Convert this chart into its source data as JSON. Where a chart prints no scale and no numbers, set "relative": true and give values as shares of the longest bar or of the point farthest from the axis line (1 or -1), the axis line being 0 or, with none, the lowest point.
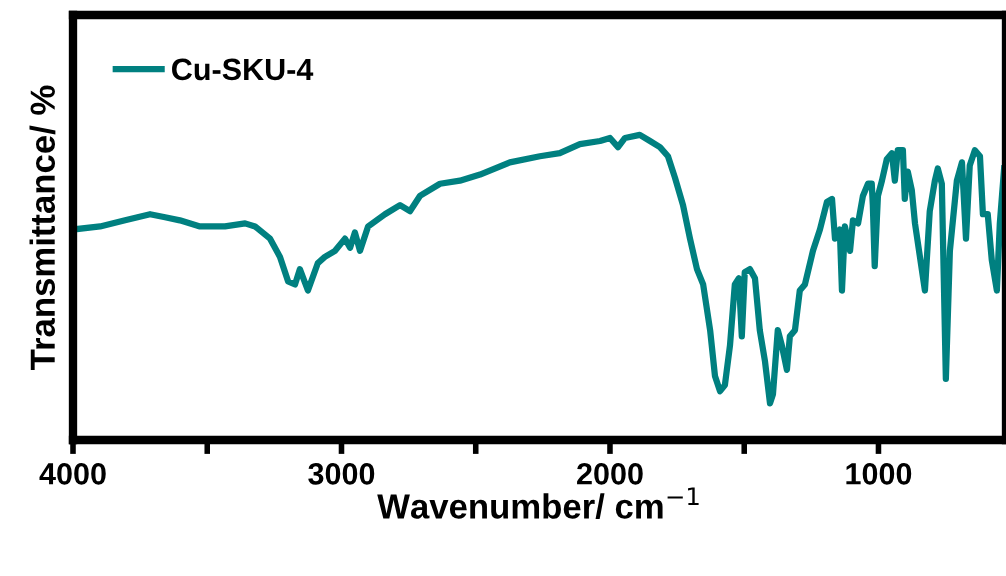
{
  "chart_data": {
    "type": "line",
    "relative": true,
    "xlabel": "Wavenumber/ cm$^{−1}$",
    "ylabel": "Transmittance/ %",
    "xlim": [
      4000,
      525
    ],
    "xticks": [
      4000,
      {
        "value": 3500,
        "label": null
      },
      3000,
      {
        "value": 2500,
        "label": null
      },
      2000,
      {
        "value": 1500,
        "label": null
      },
      1000
    ],
    "tick_labels": "x",
    "grid": false,
    "legend": "top left",
    "marker": "none",
    "line_style": "solid",
    "x": [
      4000,
      3899,
      3806,
      3713,
      3657,
      3602,
      3527,
      3434,
      3359,
      3322,
      3266,
      3229,
      3199,
      3173,
      3155,
      3125,
      3088,
      3062,
      3024,
      2987,
      2968,
      2950,
      2931,
      2901,
      2838,
      2782,
      2745,
      2708,
      2633,
      2559,
      2484,
      2373,
      2261,
      2187,
      2112,
      2037,
      2000,
      1970,
      1944,
      1889,
      1851,
      1814,
      1784,
      1758,
      1728,
      1702,
      1676,
      1653,
      1627,
      1609,
      1590,
      1572,
      1553,
      1535,
      1520,
      1509,
      1498,
      1479,
      1460,
      1442,
      1423,
      1404,
      1393,
      1375,
      1360,
      1341,
      1330,
      1311,
      1293,
      1274,
      1244,
      1218,
      1192,
      1173,
      1162,
      1144,
      1136,
      1125,
      1106,
      1095,
      1076,
      1058,
      1039,
      1025,
      1021,
      1014,
      1002,
      987,
      969,
      950,
      939,
      928,
      909,
      902,
      891,
      876,
      864,
      827,
      809,
      790,
      779,
      764,
      749,
      734,
      708,
      689,
      674,
      660,
      641,
      622,
      611,
      593,
      578,
      559,
      548,
      532
    ],
    "series": [
      {
        "name": "Cu-SKU-4",
        "color": "#008080",
        "values": [
          0.69,
          0.7,
          0.72,
          0.74,
          0.73,
          0.72,
          0.7,
          0.7,
          0.71,
          0.7,
          0.66,
          0.6,
          0.52,
          0.51,
          0.56,
          0.49,
          0.58,
          0.6,
          0.62,
          0.66,
          0.63,
          0.68,
          0.62,
          0.7,
          0.74,
          0.77,
          0.75,
          0.8,
          0.84,
          0.85,
          0.87,
          0.91,
          0.93,
          0.94,
          0.97,
          0.98,
          0.99,
          0.96,
          0.99,
          1.0,
          0.98,
          0.96,
          0.93,
          0.86,
          0.77,
          0.66,
          0.56,
          0.51,
          0.36,
          0.21,
          0.16,
          0.18,
          0.31,
          0.51,
          0.53,
          0.34,
          0.55,
          0.56,
          0.53,
          0.36,
          0.26,
          0.12,
          0.15,
          0.36,
          0.31,
          0.23,
          0.34,
          0.36,
          0.49,
          0.51,
          0.62,
          0.69,
          0.78,
          0.79,
          0.66,
          0.69,
          0.49,
          0.7,
          0.62,
          0.72,
          0.71,
          0.8,
          0.84,
          0.84,
          0.77,
          0.57,
          0.8,
          0.85,
          0.92,
          0.94,
          0.85,
          0.95,
          0.95,
          0.79,
          0.88,
          0.82,
          0.71,
          0.49,
          0.75,
          0.85,
          0.89,
          0.84,
          0.2,
          0.62,
          0.85,
          0.91,
          0.66,
          0.9,
          0.95,
          0.93,
          0.74,
          0.74,
          0.59,
          0.49,
          0.71,
          0.89
        ]
      }
    ]
  }
}
